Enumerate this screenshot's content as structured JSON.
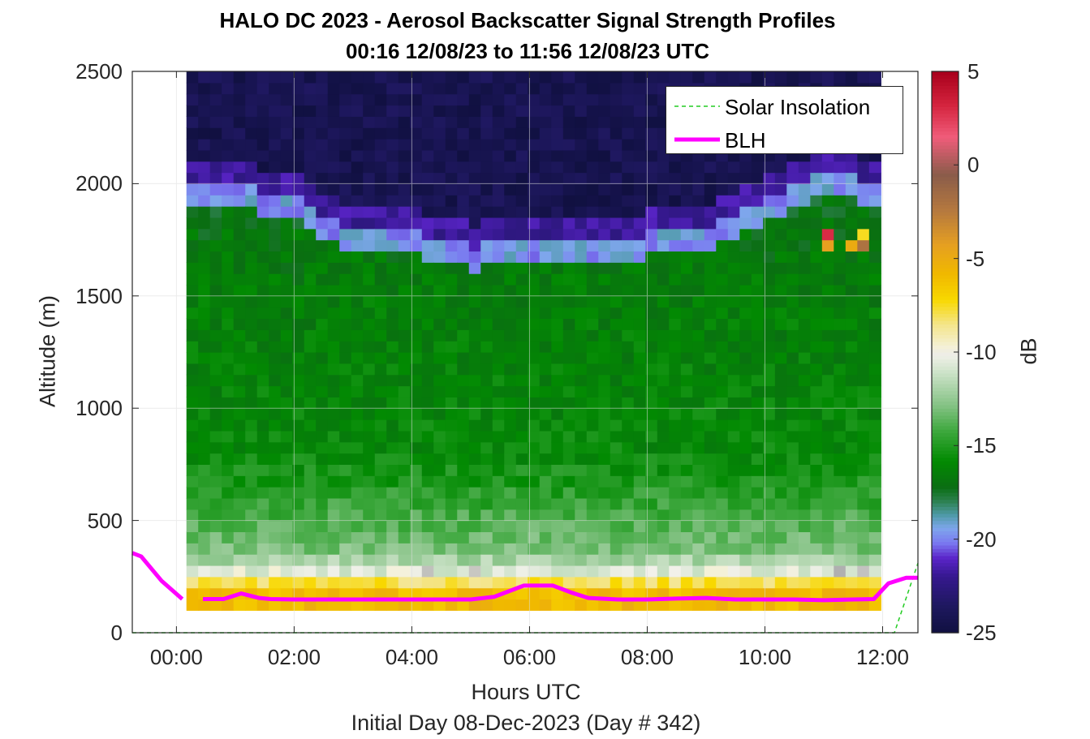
{
  "chart_data": {
    "type": "heatmap",
    "title": "HALO DC 2023 - Aerosol Backscatter Signal Strength Profiles",
    "subtitle": "00:16 12/08/23 to 11:56 12/08/23  UTC",
    "xlabel": "Hours UTC",
    "ylabel": "Altitude (m)",
    "footnote": "Initial Day 08-Dec-2023 (Day # 342)",
    "colorbar_label": "dB",
    "xlim": [
      -0.75,
      12.6
    ],
    "ylim": [
      0,
      2500
    ],
    "x_ticks": [
      {
        "value": 0,
        "label": "00:00"
      },
      {
        "value": 2,
        "label": "02:00"
      },
      {
        "value": 4,
        "label": "04:00"
      },
      {
        "value": 6,
        "label": "06:00"
      },
      {
        "value": 8,
        "label": "08:00"
      },
      {
        "value": 10,
        "label": "10:00"
      },
      {
        "value": 12,
        "label": "12:00"
      }
    ],
    "y_ticks": [
      0,
      500,
      1000,
      1500,
      2000,
      2500
    ],
    "y_tick_labels": [
      "0",
      "500",
      "1000",
      "1500",
      "2000",
      "2500"
    ],
    "colorbar_range": [
      -25,
      5
    ],
    "colorbar_ticks": [
      5,
      0,
      -5,
      -10,
      -15,
      -20,
      -25
    ],
    "colorbar_tick_labels": [
      "5",
      "0",
      "-5",
      "-10",
      "-15",
      "-20",
      "-25"
    ],
    "grid": true,
    "legend_position": "top-right",
    "colormap": [
      {
        "v": -25,
        "c": "#101040"
      },
      {
        "v": -23.5,
        "c": "#1f1860"
      },
      {
        "v": -22,
        "c": "#35188e"
      },
      {
        "v": -21,
        "c": "#5a24c8"
      },
      {
        "v": -20.2,
        "c": "#7a78f0"
      },
      {
        "v": -19.4,
        "c": "#7ea6ec"
      },
      {
        "v": -18.7,
        "c": "#4f9aa8"
      },
      {
        "v": -17.9,
        "c": "#2a7f4a"
      },
      {
        "v": -17.2,
        "c": "#0a6e12"
      },
      {
        "v": -15.8,
        "c": "#028a02"
      },
      {
        "v": -14.2,
        "c": "#3ea83e"
      },
      {
        "v": -12.8,
        "c": "#86c386"
      },
      {
        "v": -11.2,
        "c": "#c8e0c4"
      },
      {
        "v": -10.1,
        "c": "#f2f1ea"
      },
      {
        "v": -10,
        "c": "#b0b0b0"
      },
      {
        "v": -9.9,
        "c": "#f4f2e2"
      },
      {
        "v": -8.5,
        "c": "#f4e58a"
      },
      {
        "v": -7.2,
        "c": "#f8d800"
      },
      {
        "v": -5.8,
        "c": "#f0b800"
      },
      {
        "v": -4.3,
        "c": "#e6a020"
      },
      {
        "v": -2.5,
        "c": "#b77a3e"
      },
      {
        "v": -0.5,
        "c": "#8a5c4a"
      },
      {
        "v": 1.5,
        "c": "#f05c7a"
      },
      {
        "v": 3.2,
        "c": "#d4243e"
      },
      {
        "v": 5,
        "c": "#a8001c"
      }
    ],
    "heatmap": {
      "x_start": 0.17,
      "x_step": 0.2,
      "x_count": 59,
      "y_start": 100,
      "y_step": 50,
      "y_count": 48,
      "profile": [
        {
          "h": 100,
          "v": -5.8
        },
        {
          "h": 200,
          "v": -6.0
        },
        {
          "h": 250,
          "v": -9.8
        },
        {
          "h": 300,
          "v": -11.2
        },
        {
          "h": 350,
          "v": -12.8
        },
        {
          "h": 450,
          "v": -13.5
        },
        {
          "h": 600,
          "v": -14.6
        },
        {
          "h": 800,
          "v": -15.8
        },
        {
          "h": 1200,
          "v": -16.2
        },
        {
          "h": 1600,
          "v": -16.5
        },
        {
          "h": 2000,
          "v": -17.2
        }
      ],
      "aerosol_top": [
        {
          "x": 0.17,
          "h": 1960
        },
        {
          "x": 1.0,
          "h": 1950
        },
        {
          "x": 2.0,
          "h": 1900
        },
        {
          "x": 3.0,
          "h": 1760
        },
        {
          "x": 4.0,
          "h": 1750
        },
        {
          "x": 5.0,
          "h": 1680
        },
        {
          "x": 6.0,
          "h": 1700
        },
        {
          "x": 7.0,
          "h": 1700
        },
        {
          "x": 8.0,
          "h": 1740
        },
        {
          "x": 9.0,
          "h": 1760
        },
        {
          "x": 10.0,
          "h": 1900
        },
        {
          "x": 10.8,
          "h": 2000
        },
        {
          "x": 11.7,
          "h": 1980
        }
      ],
      "upper_value": -24.2,
      "hotspots": [
        {
          "x": 11.05,
          "h": 1725,
          "v": 3.0
        },
        {
          "x": 11.05,
          "h": 1675,
          "v": -4.3
        },
        {
          "x": 11.35,
          "h": 1675,
          "v": -5.0
        },
        {
          "x": 11.65,
          "h": 1675,
          "v": -2.0
        },
        {
          "x": 11.65,
          "h": 1725,
          "v": -7.5
        }
      ]
    },
    "series": [
      {
        "name": "Solar Insolation",
        "color": "#22cc22",
        "style": "dashed",
        "x": [
          -0.75,
          12.2,
          12.6
        ],
        "y": [
          0,
          0,
          310
        ]
      },
      {
        "name": "BLH",
        "color": "#ff00ff",
        "style": "solid",
        "segments": [
          {
            "x": [
              -0.75,
              -0.6,
              -0.25,
              0.1
            ],
            "y": [
              355,
              340,
              230,
              150
            ]
          },
          {
            "x": [
              0.45,
              0.8,
              1.1,
              1.4,
              1.6,
              2.0,
              3.0,
              4.0,
              5.0,
              5.4,
              5.9,
              6.4,
              6.7,
              7.0,
              7.5,
              8.0,
              8.5,
              9.0,
              9.5,
              10.0,
              10.5,
              11.0,
              11.5,
              11.85,
              12.1,
              12.4,
              12.6
            ],
            "y": [
              150,
              150,
              175,
              155,
              150,
              148,
              148,
              148,
              148,
              160,
              210,
              210,
              180,
              155,
              148,
              148,
              152,
              155,
              148,
              148,
              148,
              145,
              148,
              150,
              220,
              245,
              245
            ]
          }
        ]
      }
    ]
  }
}
